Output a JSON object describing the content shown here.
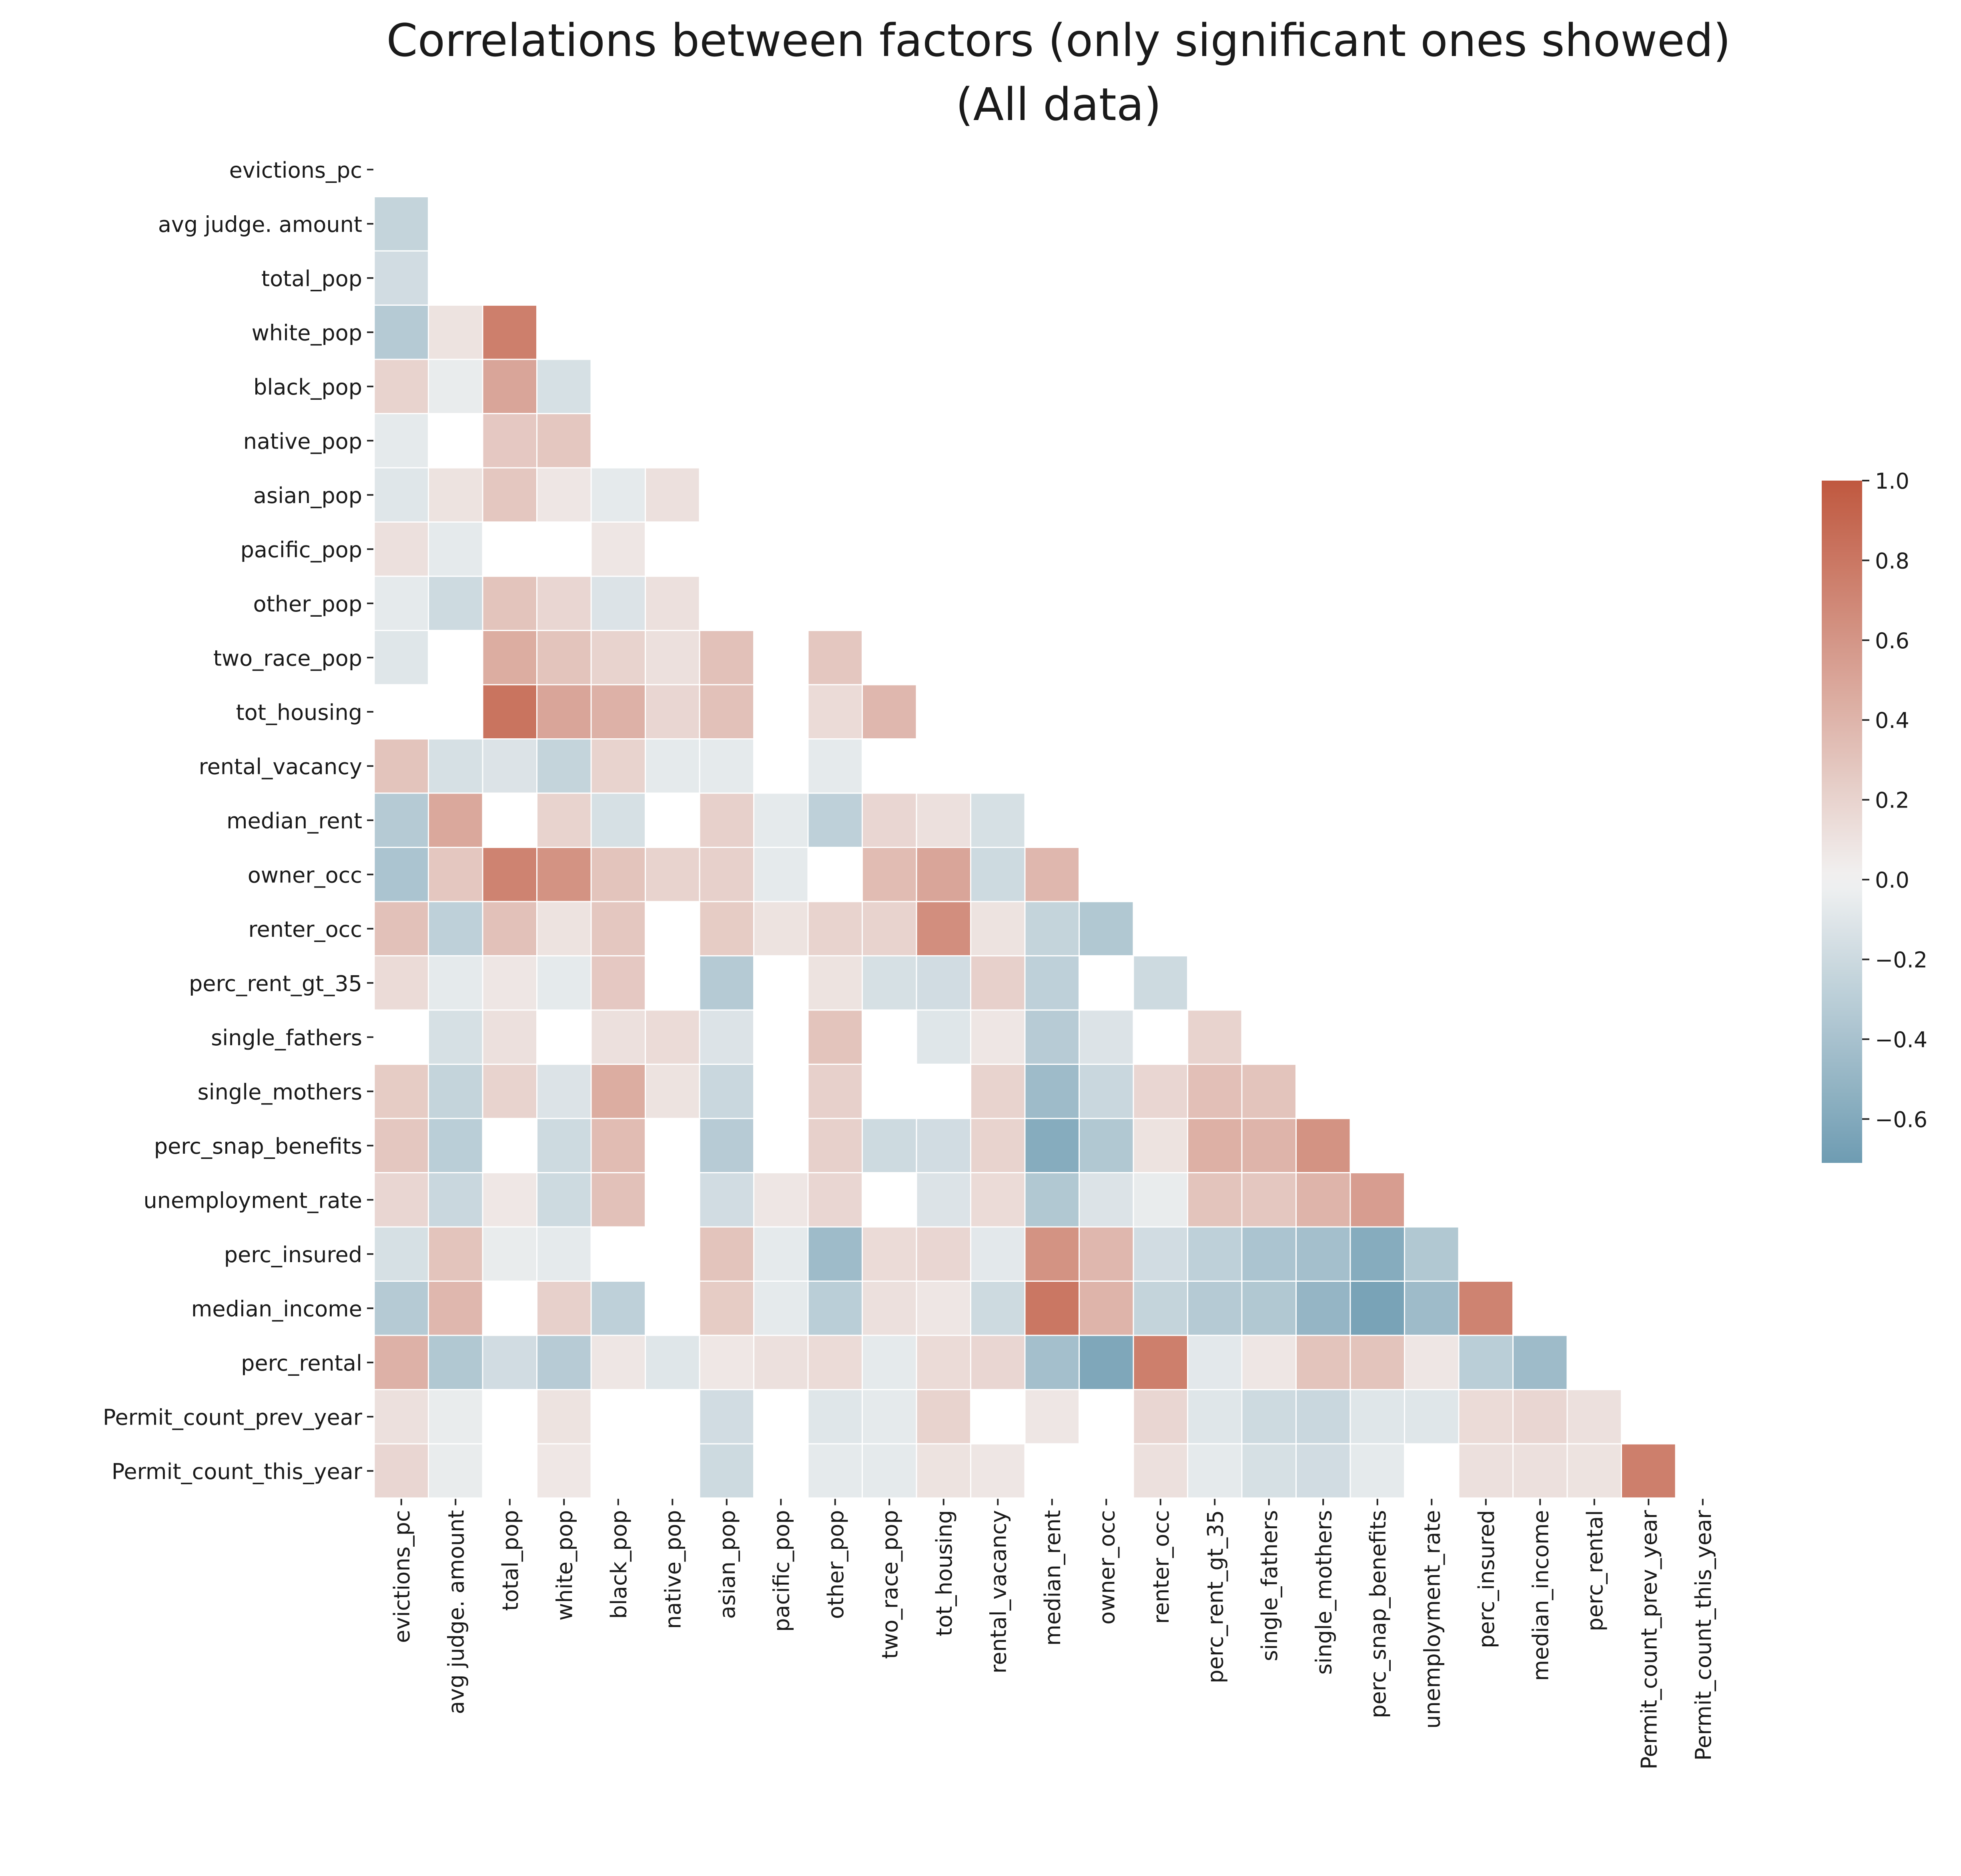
{
  "chart_data": {
    "type": "heatmap",
    "title": "Correlations between factors (only significant ones showed)",
    "subtitle": "(All data)",
    "xlabel": "",
    "ylabel": "",
    "variables": [
      "evictions_pc",
      "avg judge. amount",
      "total_pop",
      "white_pop",
      "black_pop",
      "native_pop",
      "asian_pop",
      "pacific_pop",
      "other_pop",
      "two_race_pop",
      "tot_housing",
      "rental_vacancy",
      "median_rent",
      "owner_occ",
      "renter_occ",
      "perc_rent_gt_35",
      "single_fathers",
      "single_mothers",
      "perc_snap_benefits",
      "unemployment_rate",
      "perc_insured",
      "median_income",
      "perc_rental",
      "Permit_count_prev_year",
      "Permit_count_this_year"
    ],
    "mask": "upper-triangle-and-diagonal",
    "note": "null = not significant (blank cell)",
    "matrix": [
      [],
      [
        -0.25
      ],
      [
        -0.18
      ],
      [
        -0.33,
        0.1,
        0.75
      ],
      [
        0.2,
        -0.05,
        0.5,
        -0.15
      ],
      [
        -0.07,
        null,
        0.27,
        0.28
      ],
      [
        -0.1,
        0.1,
        0.28,
        0.08,
        -0.07,
        0.12
      ],
      [
        0.12,
        -0.07,
        null,
        null,
        0.08,
        null
      ],
      [
        -0.07,
        -0.2,
        0.3,
        0.18,
        -0.12,
        0.12,
        null,
        null
      ],
      [
        -0.1,
        null,
        0.45,
        0.3,
        0.2,
        0.12,
        0.32,
        null,
        0.28
      ],
      [
        null,
        null,
        0.82,
        0.5,
        0.42,
        0.18,
        0.32,
        null,
        0.15,
        0.38
      ],
      [
        0.3,
        -0.15,
        -0.12,
        -0.25,
        0.2,
        -0.07,
        -0.07,
        null,
        -0.07,
        null,
        null
      ],
      [
        -0.33,
        0.48,
        null,
        0.2,
        -0.15,
        null,
        0.22,
        -0.07,
        -0.28,
        0.18,
        0.12,
        -0.15
      ],
      [
        -0.38,
        0.28,
        0.72,
        0.62,
        0.3,
        0.2,
        0.22,
        -0.07,
        null,
        0.35,
        0.5,
        -0.2,
        0.38
      ],
      [
        0.32,
        -0.28,
        0.32,
        0.1,
        0.28,
        null,
        0.25,
        0.1,
        0.2,
        0.2,
        0.65,
        0.1,
        -0.25,
        -0.35
      ],
      [
        0.15,
        -0.07,
        0.08,
        -0.07,
        0.27,
        null,
        -0.33,
        null,
        0.1,
        -0.15,
        -0.18,
        0.22,
        -0.28,
        null,
        -0.2
      ],
      [
        null,
        -0.15,
        0.12,
        null,
        0.12,
        0.15,
        -0.12,
        null,
        0.3,
        null,
        -0.1,
        0.08,
        -0.32,
        -0.12,
        null,
        0.2
      ],
      [
        0.25,
        -0.25,
        0.2,
        -0.12,
        0.45,
        0.1,
        -0.22,
        null,
        0.22,
        null,
        null,
        0.2,
        -0.45,
        -0.22,
        0.18,
        0.33,
        0.3
      ],
      [
        0.28,
        -0.3,
        null,
        -0.2,
        0.35,
        null,
        -0.32,
        null,
        0.22,
        -0.2,
        -0.18,
        0.2,
        -0.58,
        -0.35,
        0.1,
        0.43,
        0.4,
        0.62
      ],
      [
        0.18,
        -0.22,
        0.07,
        -0.2,
        0.32,
        null,
        -0.18,
        0.08,
        0.18,
        null,
        -0.12,
        0.15,
        -0.35,
        -0.12,
        -0.05,
        0.3,
        0.28,
        0.4,
        0.55
      ],
      [
        -0.15,
        0.3,
        -0.05,
        -0.07,
        null,
        null,
        0.3,
        -0.07,
        -0.45,
        0.15,
        0.18,
        -0.08,
        0.62,
        0.38,
        -0.18,
        -0.28,
        -0.38,
        -0.42,
        -0.58,
        -0.35
      ],
      [
        -0.33,
        0.38,
        null,
        0.22,
        -0.28,
        null,
        0.25,
        -0.07,
        -0.3,
        0.12,
        0.08,
        -0.2,
        0.8,
        0.4,
        -0.25,
        -0.33,
        -0.35,
        -0.5,
        -0.65,
        -0.45,
        0.72
      ],
      [
        0.42,
        -0.35,
        -0.18,
        -0.32,
        0.08,
        -0.1,
        0.07,
        0.12,
        0.15,
        -0.07,
        0.15,
        0.18,
        -0.42,
        -0.62,
        0.75,
        -0.08,
        0.08,
        0.3,
        0.3,
        0.08,
        -0.3,
        -0.45
      ],
      [
        0.12,
        -0.05,
        null,
        0.1,
        null,
        null,
        -0.18,
        null,
        -0.1,
        -0.07,
        0.2,
        null,
        0.08,
        null,
        0.18,
        -0.1,
        -0.2,
        -0.22,
        -0.1,
        -0.1,
        0.15,
        0.18,
        0.12
      ],
      [
        0.18,
        -0.05,
        null,
        0.07,
        null,
        null,
        -0.2,
        null,
        -0.07,
        -0.07,
        0.1,
        0.08,
        null,
        null,
        0.12,
        -0.07,
        -0.15,
        -0.18,
        -0.07,
        null,
        0.12,
        0.12,
        0.1,
        0.75
      ]
    ],
    "colorbar": {
      "vmin": -0.71,
      "vmax": 1.0,
      "ticks": [
        1.0,
        0.8,
        0.6,
        0.4,
        0.2,
        0.0,
        -0.2,
        -0.4,
        -0.6
      ],
      "tick_labels": [
        "1.0",
        "0.8",
        "0.6",
        "0.4",
        "0.2",
        "0.0",
        "−0.2",
        "−0.4",
        "−0.6"
      ]
    },
    "colors": {
      "negative_end": "#6e9cb2",
      "center": "#f2f2f2",
      "positive_end": "#c0583f",
      "gridline": "#ffffff"
    }
  }
}
